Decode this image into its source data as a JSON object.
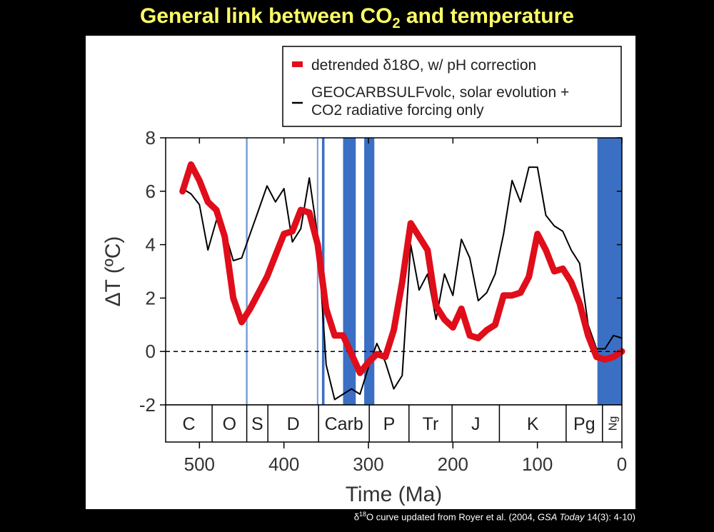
{
  "slide": {
    "title_main": "General link between CO",
    "title_sub": "2",
    "title_rest": " and temperature",
    "caption_sup": "18",
    "caption_pre": "δ",
    "caption_text": "O curve updated from Royer et al. (2004, ",
    "caption_journal": "GSA Today",
    "caption_end": " 14(3): 4-10)"
  },
  "chart_data": {
    "type": "line",
    "xlabel": "Time (Ma)",
    "ylabel": "ΔT (ºC)",
    "xlim": [
      540,
      0
    ],
    "ylim": [
      -2,
      8
    ],
    "x_ticks": [
      500,
      400,
      300,
      200,
      100,
      0
    ],
    "y_ticks": [
      8,
      6,
      4,
      2,
      0,
      -2
    ],
    "zero_line": "dashed",
    "legend": {
      "placement": "top-right",
      "entry1": "detrended δ18O, w/ pH correction",
      "entry2_line1": "GEOCARBSULFvolc, solar evolution +",
      "entry2_line2": "CO2 radiative forcing only"
    },
    "periods": [
      {
        "label": "C",
        "start": 541,
        "end": 485
      },
      {
        "label": "O",
        "start": 485,
        "end": 444
      },
      {
        "label": "S",
        "start": 444,
        "end": 419
      },
      {
        "label": "D",
        "start": 419,
        "end": 359
      },
      {
        "label": "Carb",
        "start": 359,
        "end": 299
      },
      {
        "label": "P",
        "start": 299,
        "end": 252
      },
      {
        "label": "Tr",
        "start": 252,
        "end": 201
      },
      {
        "label": "J",
        "start": 201,
        "end": 145
      },
      {
        "label": "K",
        "start": 145,
        "end": 66
      },
      {
        "label": "Pg",
        "start": 66,
        "end": 23
      },
      {
        "label": "Ng",
        "start": 23,
        "end": 0
      }
    ],
    "glaciations": [
      {
        "start": 445,
        "end": 443
      },
      {
        "start": 361,
        "end": 360
      },
      {
        "start": 355,
        "end": 352
      },
      {
        "start": 330,
        "end": 315
      },
      {
        "start": 305,
        "end": 293
      },
      {
        "start": 29,
        "end": 0
      }
    ],
    "series": [
      {
        "name": "detrended δ18O, w/ pH correction",
        "color": "#e00d1a",
        "x": [
          520,
          510,
          500,
          490,
          480,
          470,
          460,
          450,
          440,
          430,
          420,
          410,
          400,
          390,
          380,
          370,
          360,
          350,
          340,
          330,
          320,
          310,
          300,
          290,
          280,
          270,
          260,
          250,
          240,
          230,
          220,
          210,
          200,
          190,
          180,
          170,
          160,
          150,
          140,
          130,
          120,
          110,
          100,
          90,
          80,
          70,
          60,
          50,
          40,
          30,
          20,
          10,
          0
        ],
        "y": [
          6.0,
          7.0,
          6.4,
          5.6,
          5.3,
          4.3,
          2.0,
          1.1,
          1.6,
          2.2,
          2.8,
          3.6,
          4.4,
          4.5,
          5.3,
          5.2,
          4.0,
          1.6,
          0.6,
          0.6,
          -0.1,
          -0.8,
          -0.4,
          -0.1,
          -0.2,
          0.8,
          2.6,
          4.8,
          4.3,
          3.8,
          1.7,
          1.2,
          0.9,
          1.6,
          0.6,
          0.5,
          0.8,
          1.0,
          2.1,
          2.1,
          2.2,
          2.8,
          4.4,
          3.8,
          3.0,
          3.1,
          2.6,
          1.8,
          0.6,
          -0.2,
          -0.3,
          -0.2,
          0.0
        ]
      },
      {
        "name": "GEOCARBSULFvolc, solar evolution + CO2 radiative forcing only",
        "color": "#000000",
        "x": [
          520,
          510,
          500,
          490,
          480,
          470,
          460,
          450,
          440,
          430,
          420,
          410,
          400,
          390,
          380,
          370,
          360,
          350,
          340,
          330,
          320,
          310,
          300,
          290,
          280,
          270,
          260,
          250,
          240,
          230,
          220,
          210,
          200,
          190,
          180,
          170,
          160,
          150,
          140,
          130,
          120,
          110,
          100,
          90,
          80,
          70,
          60,
          50,
          40,
          30,
          20,
          10,
          0
        ],
        "y": [
          6.1,
          5.9,
          5.5,
          3.8,
          4.9,
          4.5,
          3.4,
          3.5,
          4.4,
          5.3,
          6.2,
          5.6,
          6.1,
          4.1,
          4.6,
          6.5,
          4.3,
          -0.5,
          -1.8,
          -1.6,
          -1.4,
          -1.6,
          -0.6,
          0.3,
          -0.4,
          -1.4,
          -0.9,
          4.0,
          2.3,
          2.9,
          1.2,
          2.9,
          2.1,
          4.2,
          3.5,
          1.9,
          2.2,
          2.9,
          4.4,
          6.4,
          5.6,
          6.9,
          6.9,
          5.1,
          4.7,
          4.5,
          3.8,
          3.3,
          1.0,
          0.1,
          0.1,
          0.6,
          0.5
        ]
      }
    ]
  }
}
